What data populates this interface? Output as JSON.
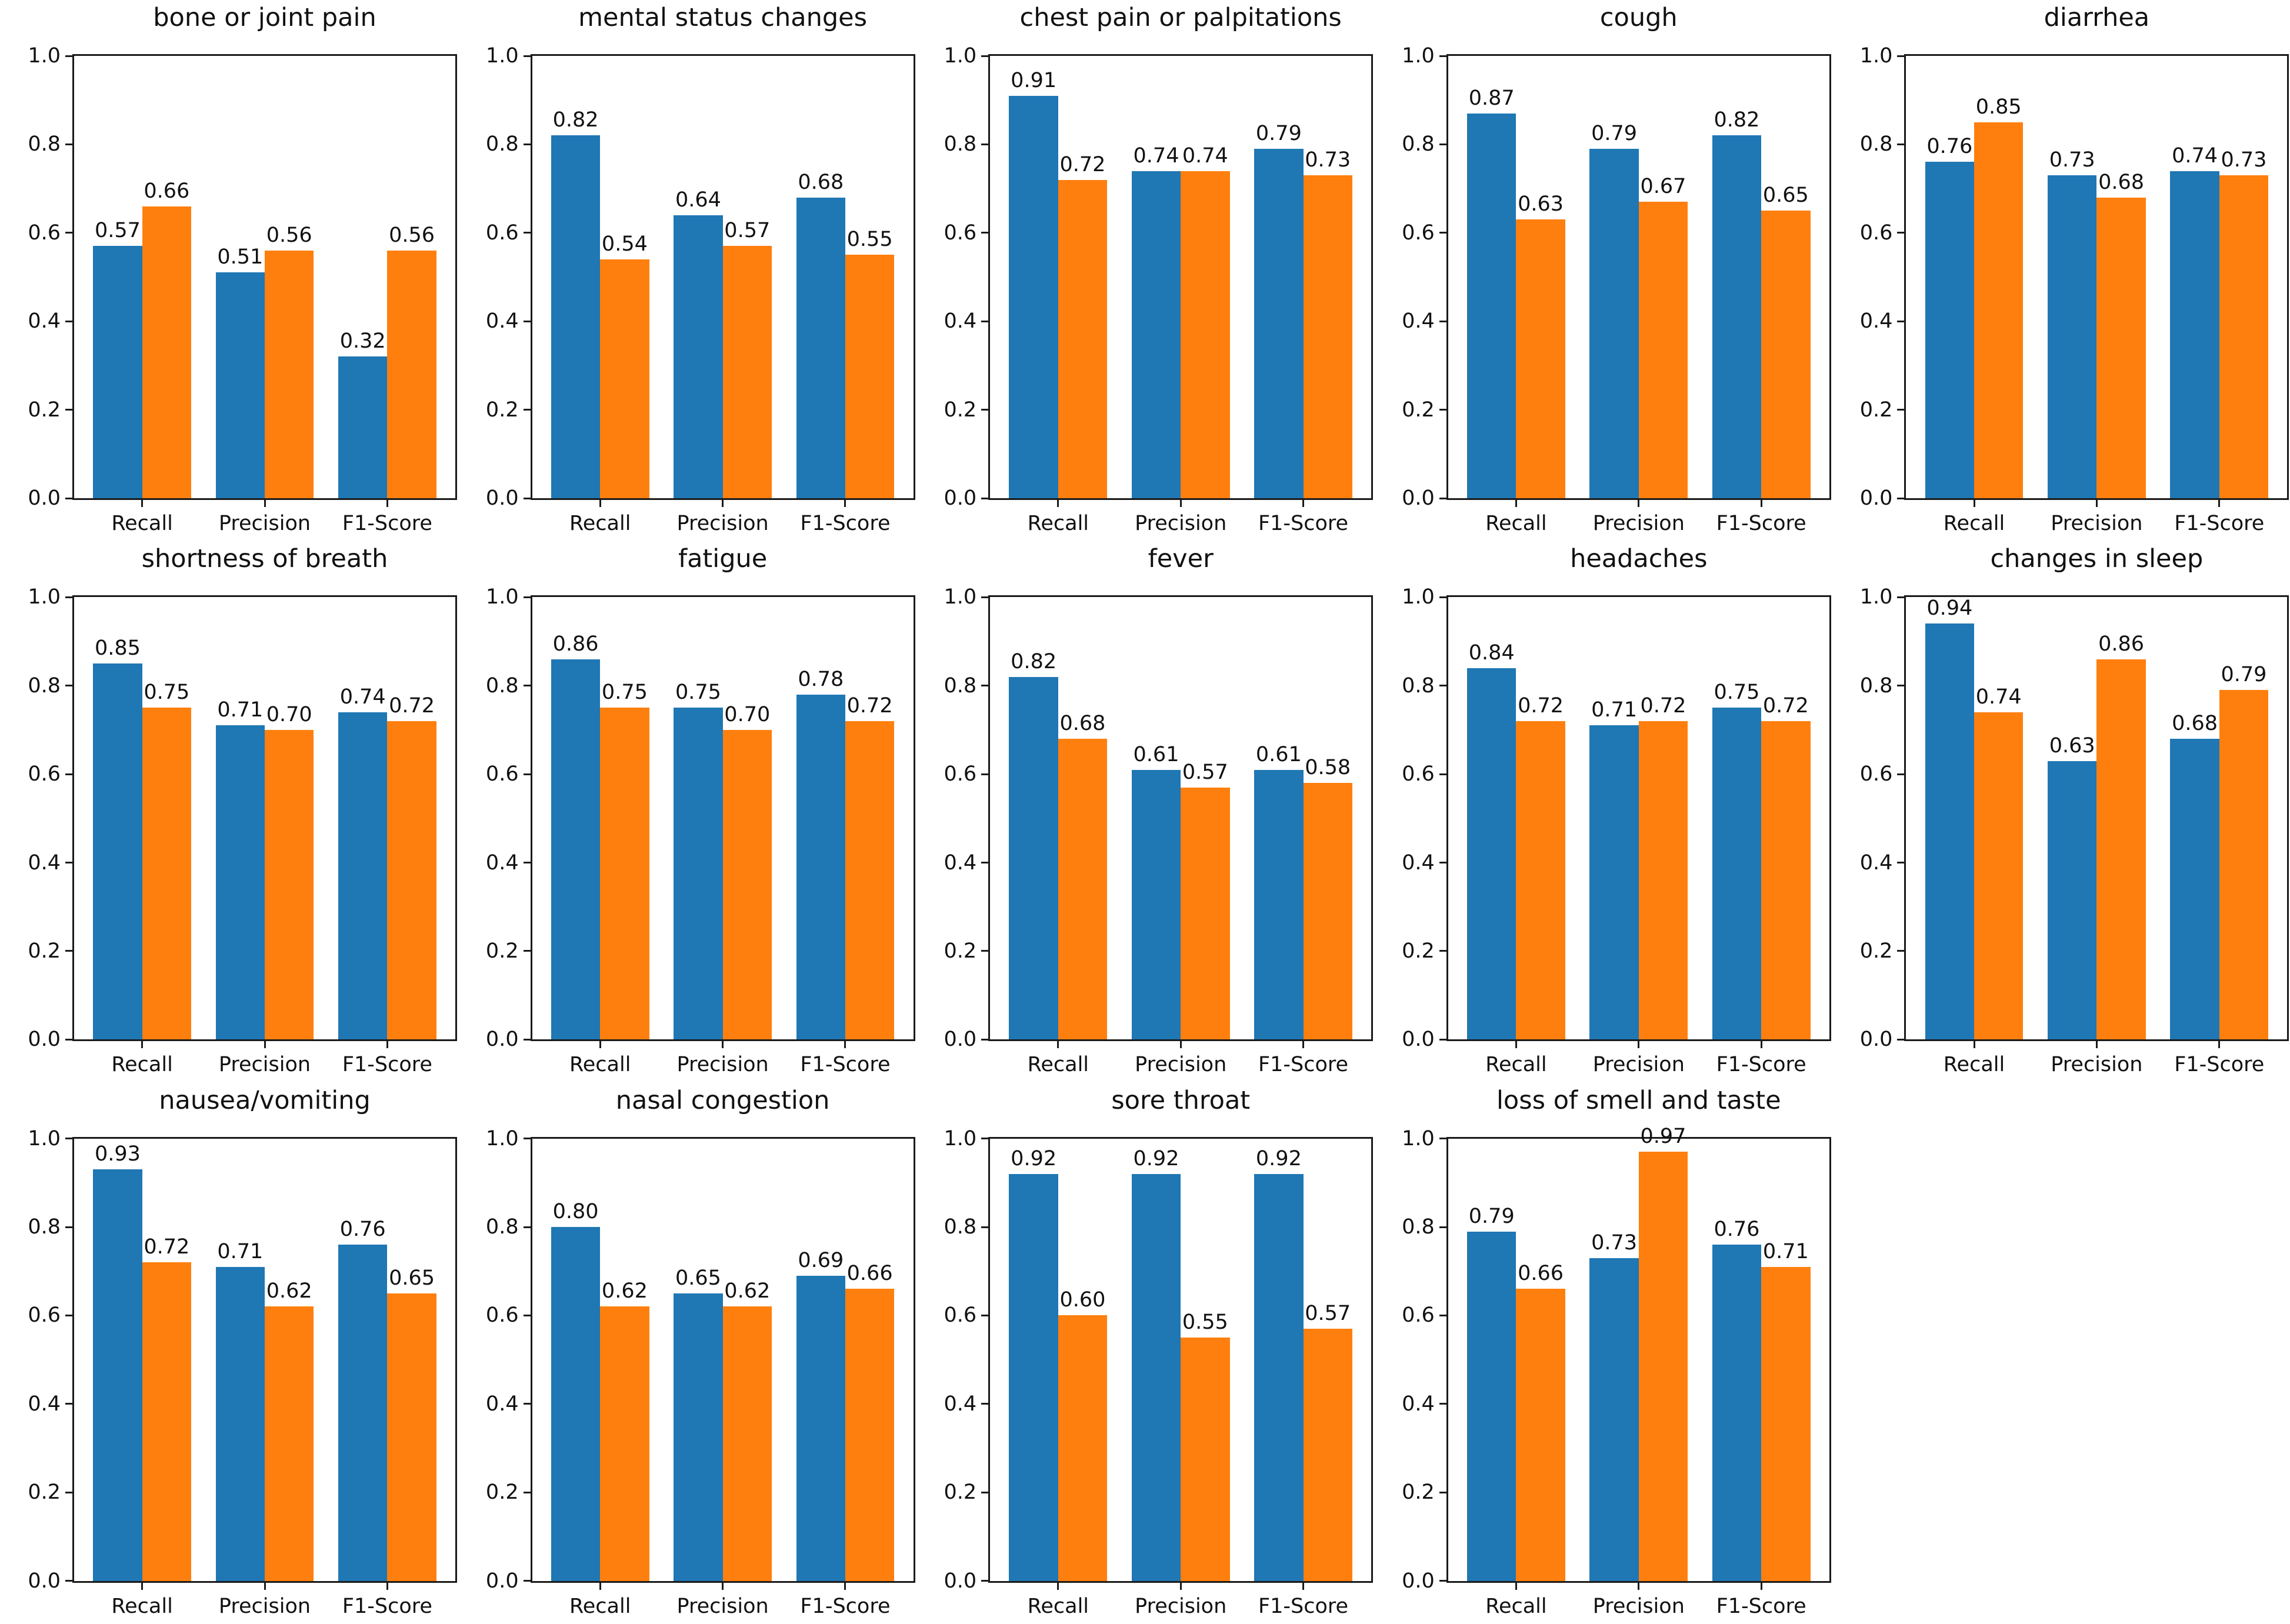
{
  "page": {
    "background": "#ffffff",
    "series_colors": [
      "#1f77b4",
      "#ff7f0e"
    ]
  },
  "layout_hints": {
    "grid_rows": 3,
    "grid_cols": 5,
    "empty_cells_bottom_right": 1,
    "legend": "none",
    "grid_lines": false
  },
  "chart_data": [
    {
      "type": "bar",
      "title": "bone or joint pain",
      "categories": [
        "Recall",
        "Precision",
        "F1-Score"
      ],
      "series": [
        {
          "color": "#1f77b4",
          "values": [
            0.57,
            0.51,
            0.32
          ]
        },
        {
          "color": "#ff7f0e",
          "values": [
            0.66,
            0.56,
            0.56
          ]
        }
      ],
      "ylim": [
        0.0,
        1.0
      ],
      "yticks": [
        0.0,
        0.2,
        0.4,
        0.6,
        0.8,
        1.0
      ],
      "xlabel": "",
      "ylabel": "",
      "grid": false,
      "legend": false,
      "bar_value_labels": true
    },
    {
      "type": "bar",
      "title": "mental status changes",
      "categories": [
        "Recall",
        "Precision",
        "F1-Score"
      ],
      "series": [
        {
          "color": "#1f77b4",
          "values": [
            0.82,
            0.64,
            0.68
          ]
        },
        {
          "color": "#ff7f0e",
          "values": [
            0.54,
            0.57,
            0.55
          ]
        }
      ],
      "ylim": [
        0.0,
        1.0
      ],
      "yticks": [
        0.0,
        0.2,
        0.4,
        0.6,
        0.8,
        1.0
      ],
      "xlabel": "",
      "ylabel": "",
      "grid": false,
      "legend": false,
      "bar_value_labels": true
    },
    {
      "type": "bar",
      "title": "chest pain or palpitations",
      "categories": [
        "Recall",
        "Precision",
        "F1-Score"
      ],
      "series": [
        {
          "color": "#1f77b4",
          "values": [
            0.91,
            0.74,
            0.79
          ]
        },
        {
          "color": "#ff7f0e",
          "values": [
            0.72,
            0.74,
            0.73
          ]
        }
      ],
      "ylim": [
        0.0,
        1.0
      ],
      "yticks": [
        0.0,
        0.2,
        0.4,
        0.6,
        0.8,
        1.0
      ],
      "xlabel": "",
      "ylabel": "",
      "grid": false,
      "legend": false,
      "bar_value_labels": true
    },
    {
      "type": "bar",
      "title": "cough",
      "categories": [
        "Recall",
        "Precision",
        "F1-Score"
      ],
      "series": [
        {
          "color": "#1f77b4",
          "values": [
            0.87,
            0.79,
            0.82
          ]
        },
        {
          "color": "#ff7f0e",
          "values": [
            0.63,
            0.67,
            0.65
          ]
        }
      ],
      "ylim": [
        0.0,
        1.0
      ],
      "yticks": [
        0.0,
        0.2,
        0.4,
        0.6,
        0.8,
        1.0
      ],
      "xlabel": "",
      "ylabel": "",
      "grid": false,
      "legend": false,
      "bar_value_labels": true
    },
    {
      "type": "bar",
      "title": "diarrhea",
      "categories": [
        "Recall",
        "Precision",
        "F1-Score"
      ],
      "series": [
        {
          "color": "#1f77b4",
          "values": [
            0.76,
            0.73,
            0.74
          ]
        },
        {
          "color": "#ff7f0e",
          "values": [
            0.85,
            0.68,
            0.73
          ]
        }
      ],
      "ylim": [
        0.0,
        1.0
      ],
      "yticks": [
        0.0,
        0.2,
        0.4,
        0.6,
        0.8,
        1.0
      ],
      "xlabel": "",
      "ylabel": "",
      "grid": false,
      "legend": false,
      "bar_value_labels": true
    },
    {
      "type": "bar",
      "title": "shortness of breath",
      "categories": [
        "Recall",
        "Precision",
        "F1-Score"
      ],
      "series": [
        {
          "color": "#1f77b4",
          "values": [
            0.85,
            0.71,
            0.74
          ]
        },
        {
          "color": "#ff7f0e",
          "values": [
            0.75,
            0.7,
            0.72
          ]
        }
      ],
      "ylim": [
        0.0,
        1.0
      ],
      "yticks": [
        0.0,
        0.2,
        0.4,
        0.6,
        0.8,
        1.0
      ],
      "xlabel": "",
      "ylabel": "",
      "grid": false,
      "legend": false,
      "bar_value_labels": true
    },
    {
      "type": "bar",
      "title": "fatigue",
      "categories": [
        "Recall",
        "Precision",
        "F1-Score"
      ],
      "series": [
        {
          "color": "#1f77b4",
          "values": [
            0.86,
            0.75,
            0.78
          ]
        },
        {
          "color": "#ff7f0e",
          "values": [
            0.75,
            0.7,
            0.72
          ]
        }
      ],
      "ylim": [
        0.0,
        1.0
      ],
      "yticks": [
        0.0,
        0.2,
        0.4,
        0.6,
        0.8,
        1.0
      ],
      "xlabel": "",
      "ylabel": "",
      "grid": false,
      "legend": false,
      "bar_value_labels": true
    },
    {
      "type": "bar",
      "title": "fever",
      "categories": [
        "Recall",
        "Precision",
        "F1-Score"
      ],
      "series": [
        {
          "color": "#1f77b4",
          "values": [
            0.82,
            0.61,
            0.61
          ]
        },
        {
          "color": "#ff7f0e",
          "values": [
            0.68,
            0.57,
            0.58
          ]
        }
      ],
      "ylim": [
        0.0,
        1.0
      ],
      "yticks": [
        0.0,
        0.2,
        0.4,
        0.6,
        0.8,
        1.0
      ],
      "xlabel": "",
      "ylabel": "",
      "grid": false,
      "legend": false,
      "bar_value_labels": true
    },
    {
      "type": "bar",
      "title": "headaches",
      "categories": [
        "Recall",
        "Precision",
        "F1-Score"
      ],
      "series": [
        {
          "color": "#1f77b4",
          "values": [
            0.84,
            0.71,
            0.75
          ]
        },
        {
          "color": "#ff7f0e",
          "values": [
            0.72,
            0.72,
            0.72
          ]
        }
      ],
      "ylim": [
        0.0,
        1.0
      ],
      "yticks": [
        0.0,
        0.2,
        0.4,
        0.6,
        0.8,
        1.0
      ],
      "xlabel": "",
      "ylabel": "",
      "grid": false,
      "legend": false,
      "bar_value_labels": true
    },
    {
      "type": "bar",
      "title": "changes in sleep",
      "categories": [
        "Recall",
        "Precision",
        "F1-Score"
      ],
      "series": [
        {
          "color": "#1f77b4",
          "values": [
            0.94,
            0.63,
            0.68
          ]
        },
        {
          "color": "#ff7f0e",
          "values": [
            0.74,
            0.86,
            0.79
          ]
        }
      ],
      "ylim": [
        0.0,
        1.0
      ],
      "yticks": [
        0.0,
        0.2,
        0.4,
        0.6,
        0.8,
        1.0
      ],
      "xlabel": "",
      "ylabel": "",
      "grid": false,
      "legend": false,
      "bar_value_labels": true
    },
    {
      "type": "bar",
      "title": "nausea/vomiting",
      "categories": [
        "Recall",
        "Precision",
        "F1-Score"
      ],
      "series": [
        {
          "color": "#1f77b4",
          "values": [
            0.93,
            0.71,
            0.76
          ]
        },
        {
          "color": "#ff7f0e",
          "values": [
            0.72,
            0.62,
            0.65
          ]
        }
      ],
      "ylim": [
        0.0,
        1.0
      ],
      "yticks": [
        0.0,
        0.2,
        0.4,
        0.6,
        0.8,
        1.0
      ],
      "xlabel": "",
      "ylabel": "",
      "grid": false,
      "legend": false,
      "bar_value_labels": true
    },
    {
      "type": "bar",
      "title": "nasal congestion",
      "categories": [
        "Recall",
        "Precision",
        "F1-Score"
      ],
      "series": [
        {
          "color": "#1f77b4",
          "values": [
            0.8,
            0.65,
            0.69
          ]
        },
        {
          "color": "#ff7f0e",
          "values": [
            0.62,
            0.62,
            0.66
          ]
        }
      ],
      "ylim": [
        0.0,
        1.0
      ],
      "yticks": [
        0.0,
        0.2,
        0.4,
        0.6,
        0.8,
        1.0
      ],
      "xlabel": "",
      "ylabel": "",
      "grid": false,
      "legend": false,
      "bar_value_labels": true
    },
    {
      "type": "bar",
      "title": "sore throat",
      "categories": [
        "Recall",
        "Precision",
        "F1-Score"
      ],
      "series": [
        {
          "color": "#1f77b4",
          "values": [
            0.92,
            0.92,
            0.92
          ]
        },
        {
          "color": "#ff7f0e",
          "values": [
            0.6,
            0.55,
            0.57
          ]
        }
      ],
      "ylim": [
        0.0,
        1.0
      ],
      "yticks": [
        0.0,
        0.2,
        0.4,
        0.6,
        0.8,
        1.0
      ],
      "xlabel": "",
      "ylabel": "",
      "grid": false,
      "legend": false,
      "bar_value_labels": true
    },
    {
      "type": "bar",
      "title": "loss of smell and taste",
      "categories": [
        "Recall",
        "Precision",
        "F1-Score"
      ],
      "series": [
        {
          "color": "#1f77b4",
          "values": [
            0.79,
            0.73,
            0.76
          ]
        },
        {
          "color": "#ff7f0e",
          "values": [
            0.66,
            0.97,
            0.71
          ]
        }
      ],
      "ylim": [
        0.0,
        1.0
      ],
      "yticks": [
        0.0,
        0.2,
        0.4,
        0.6,
        0.8,
        1.0
      ],
      "xlabel": "",
      "ylabel": "",
      "grid": false,
      "legend": false,
      "bar_value_labels": true
    }
  ]
}
